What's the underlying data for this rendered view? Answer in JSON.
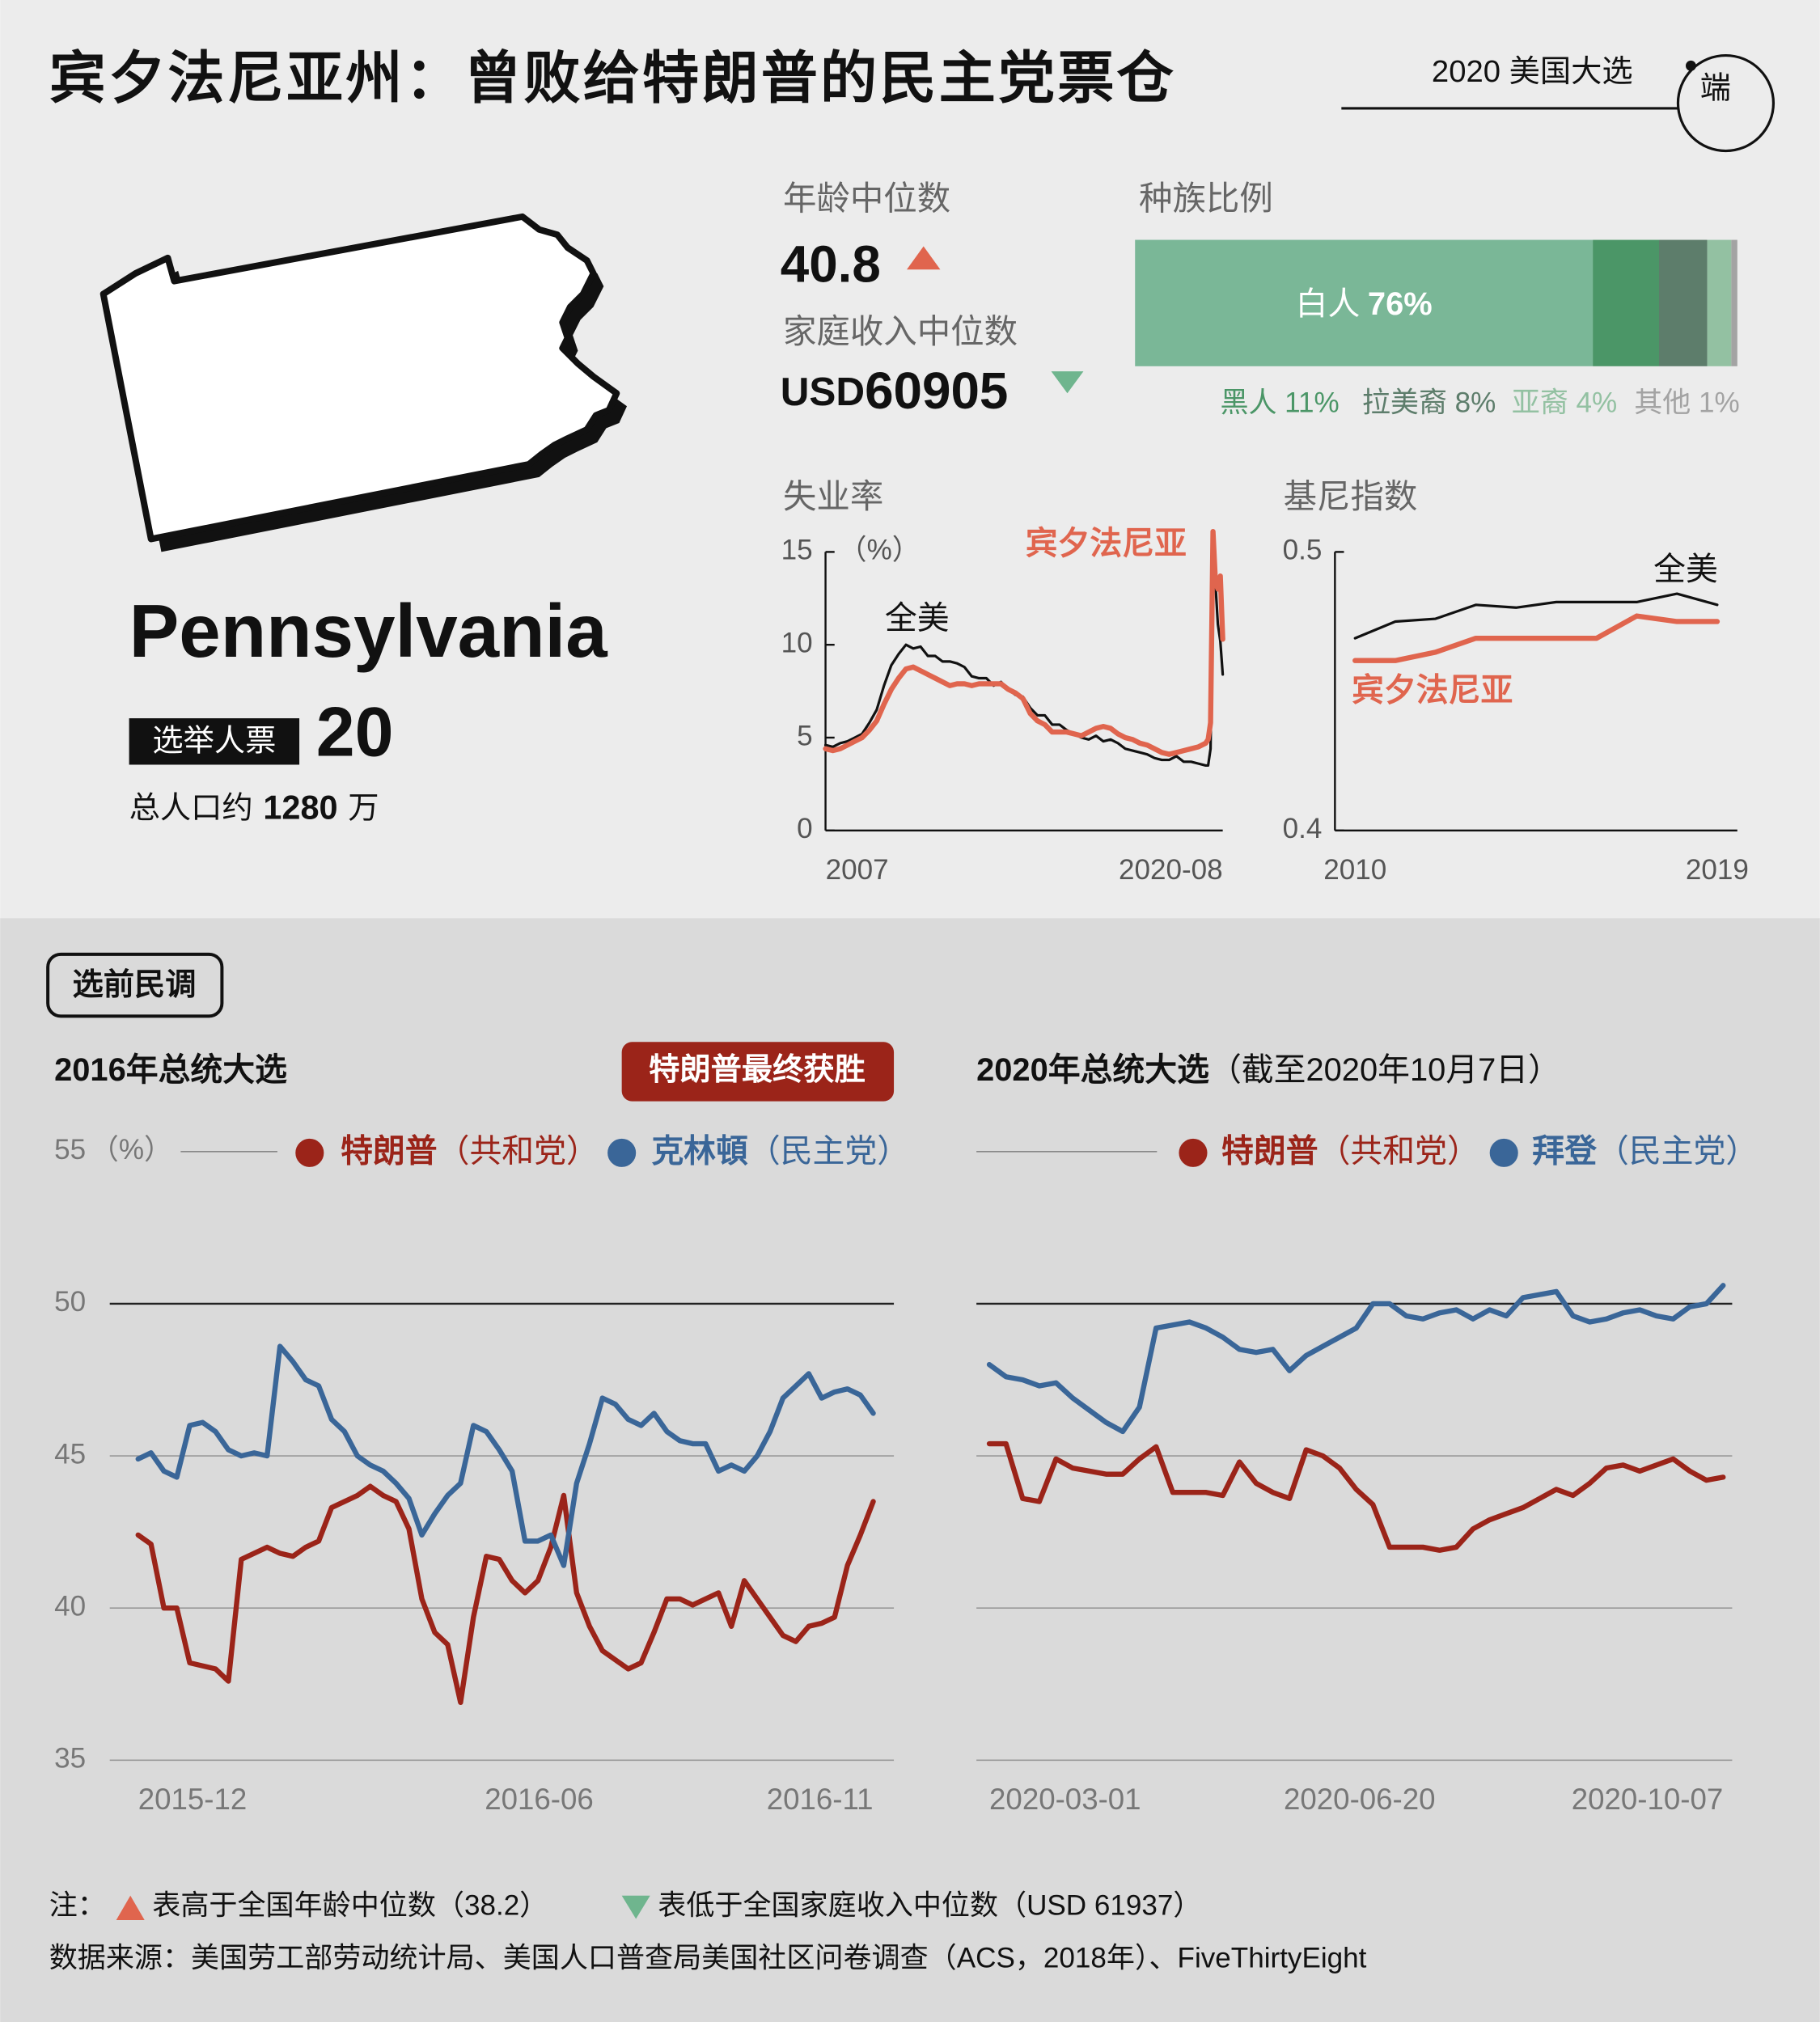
{
  "header": {
    "title": "宾夕法尼亚州：曾败给特朗普的民主党票仓",
    "series_tag": "2020 美国大选",
    "logo": "端"
  },
  "state": {
    "name": "Pennsylvania",
    "electoral_label": "选举人票",
    "electoral_votes": 20,
    "population_prefix": "总人口约",
    "population": 1280,
    "population_unit": "万"
  },
  "stats": {
    "age_label": "年龄中位数",
    "age_median": 40.8,
    "income_label": "家庭收入中位数",
    "income_currency": "USD",
    "income_median": 60905
  },
  "section": "选前民调",
  "notes": {
    "prefix": "注：",
    "age_note": "表高于全国年龄中位数（38.2）",
    "income_note": "表低于全国家庭收入中位数（USD 61937）",
    "source": "数据来源：美国劳工部劳动统计局、美国人口普查局美国社区问卷调查（ACS，2018年）、FiveThirtyEight"
  },
  "chart_data": [
    {
      "type": "stacked-bar",
      "title": "种族比例",
      "categories": [
        "白人",
        "黑人",
        "拉美裔",
        "亚裔",
        "其他"
      ],
      "values": [
        76,
        11,
        8,
        4,
        1
      ],
      "value_labels": [
        "76%",
        "11%",
        "8%",
        "4%",
        "1%"
      ],
      "colors": [
        "#7ab797",
        "#4b9667",
        "#5d7d6b",
        "#93c1a2",
        "#a3a3a3"
      ],
      "xlim": [
        0,
        100
      ]
    },
    {
      "type": "line",
      "title": "失业率",
      "unit": "（%）",
      "x": [
        "2007-01",
        "2007-04",
        "2007-07",
        "2007-10",
        "2008-01",
        "2008-04",
        "2008-07",
        "2008-10",
        "2009-01",
        "2009-04",
        "2009-07",
        "2009-10",
        "2010-01",
        "2010-04",
        "2010-07",
        "2010-10",
        "2011-01",
        "2011-04",
        "2011-07",
        "2011-10",
        "2012-01",
        "2012-04",
        "2012-07",
        "2012-10",
        "2013-01",
        "2013-04",
        "2013-07",
        "2013-10",
        "2014-01",
        "2014-04",
        "2014-07",
        "2014-10",
        "2015-01",
        "2015-04",
        "2015-07",
        "2015-10",
        "2016-01",
        "2016-04",
        "2016-07",
        "2016-10",
        "2017-01",
        "2017-04",
        "2017-07",
        "2017-10",
        "2018-01",
        "2018-04",
        "2018-07",
        "2018-10",
        "2019-01",
        "2019-04",
        "2019-07",
        "2019-10",
        "2020-01",
        "2020-02",
        "2020-03",
        "2020-04",
        "2020-05",
        "2020-06",
        "2020-07",
        "2020-08"
      ],
      "xlim": [
        "2007-01",
        "2020-08"
      ],
      "xticks": [
        {
          "value": "2007-01",
          "label": "2007"
        },
        "2020-08"
      ],
      "ylim": [
        0,
        15
      ],
      "yticks": [
        0,
        5,
        10,
        15
      ],
      "grid": false,
      "series": [
        {
          "name": "全美",
          "color": "#111111",
          "values": [
            4.6,
            4.5,
            4.7,
            4.8,
            5.0,
            5.2,
            5.8,
            6.5,
            7.8,
            8.9,
            9.5,
            10.0,
            9.8,
            9.9,
            9.4,
            9.4,
            9.1,
            9.1,
            9.0,
            8.8,
            8.3,
            8.2,
            8.2,
            7.8,
            8.0,
            7.6,
            7.3,
            7.2,
            6.6,
            6.2,
            6.2,
            5.7,
            5.7,
            5.4,
            5.2,
            5.0,
            4.9,
            5.1,
            4.8,
            4.9,
            4.7,
            4.4,
            4.3,
            4.2,
            4.1,
            3.9,
            3.8,
            3.8,
            4.0,
            3.7,
            3.7,
            3.6,
            3.5,
            3.5,
            4.4,
            14.7,
            13.3,
            11.1,
            10.2,
            8.4
          ]
        },
        {
          "name": "宾夕法尼亚",
          "color": "#e0654e",
          "values": [
            4.4,
            4.3,
            4.4,
            4.6,
            4.8,
            5.0,
            5.4,
            5.9,
            6.8,
            7.6,
            8.2,
            8.7,
            8.8,
            8.6,
            8.4,
            8.2,
            8.0,
            7.8,
            7.9,
            7.9,
            7.8,
            7.9,
            7.9,
            7.9,
            7.9,
            7.6,
            7.4,
            7.1,
            6.3,
            5.9,
            5.7,
            5.3,
            5.3,
            5.3,
            5.2,
            5.1,
            5.3,
            5.5,
            5.6,
            5.5,
            5.2,
            5.0,
            4.9,
            4.7,
            4.6,
            4.4,
            4.2,
            4.1,
            4.2,
            4.3,
            4.4,
            4.5,
            4.7,
            4.9,
            5.8,
            16.1,
            13.4,
            13.0,
            13.7,
            10.3
          ]
        }
      ]
    },
    {
      "type": "line",
      "title": "基尼指数",
      "x": [
        2010,
        2011,
        2012,
        2013,
        2014,
        2015,
        2016,
        2017,
        2018,
        2019
      ],
      "xlim": [
        2009.5,
        2019.5
      ],
      "xticks": [
        2010,
        2019
      ],
      "ylim": [
        0.4,
        0.5
      ],
      "yticks": [
        0.4,
        0.5
      ],
      "grid": false,
      "series": [
        {
          "name": "全美",
          "color": "#111111",
          "values": [
            0.469,
            0.475,
            0.476,
            0.481,
            0.48,
            0.482,
            0.482,
            0.482,
            0.485,
            0.481
          ]
        },
        {
          "name": "宾夕法尼亚",
          "color": "#e0654e",
          "values": [
            0.461,
            0.461,
            0.464,
            0.469,
            0.469,
            0.469,
            0.469,
            0.477,
            0.475,
            0.475
          ]
        }
      ]
    },
    {
      "type": "line",
      "title": "2016年总统大选",
      "annotation": "特朗普最终获胜",
      "unit": "（%）",
      "xlim": [
        "2015-12",
        "2016-11"
      ],
      "xticks": [
        "2015-12",
        "2016-06",
        "2016-11"
      ],
      "ylim": [
        35,
        55
      ],
      "yticks": [
        35,
        40,
        45,
        50,
        55
      ],
      "grid": true,
      "series": [
        {
          "name": "特朗普",
          "party": "（共和党）",
          "color": "#9b2419",
          "values": [
            42.4,
            42.1,
            40.0,
            40.0,
            38.2,
            38.1,
            38.0,
            37.6,
            41.6,
            41.8,
            42.0,
            41.8,
            41.7,
            42.0,
            42.2,
            43.3,
            43.5,
            43.7,
            44.0,
            43.7,
            43.5,
            42.6,
            40.3,
            39.2,
            38.8,
            36.9,
            39.7,
            41.7,
            41.6,
            40.9,
            40.5,
            40.9,
            42.0,
            43.7,
            40.5,
            39.4,
            38.6,
            38.3,
            38.0,
            38.2,
            39.2,
            40.3,
            40.3,
            40.1,
            40.3,
            40.5,
            39.4,
            40.9,
            40.3,
            39.7,
            39.1,
            38.9,
            39.4,
            39.5,
            39.7,
            41.4,
            42.4,
            43.5
          ]
        },
        {
          "name": "克林頓",
          "party": "（民主党）",
          "color": "#3a6698",
          "values": [
            44.9,
            45.1,
            44.5,
            44.3,
            46.0,
            46.1,
            45.8,
            45.2,
            45.0,
            45.1,
            45.0,
            48.6,
            48.1,
            47.5,
            47.3,
            46.2,
            45.8,
            45.0,
            44.7,
            44.5,
            44.1,
            43.6,
            42.4,
            43.1,
            43.7,
            44.1,
            46.0,
            45.8,
            45.2,
            44.5,
            42.2,
            42.2,
            42.4,
            41.4,
            44.1,
            45.4,
            46.9,
            46.7,
            46.2,
            46.0,
            46.4,
            45.8,
            45.5,
            45.4,
            45.4,
            44.5,
            44.7,
            44.5,
            45.0,
            45.8,
            46.9,
            47.3,
            47.7,
            46.9,
            47.1,
            47.2,
            47.0,
            46.4
          ]
        }
      ]
    },
    {
      "type": "line",
      "title": "2020年总统大选",
      "subtitle": "（截至2020年10月7日）",
      "x": [
        "2020-03-01",
        "2020-03-06",
        "2020-03-11",
        "2020-03-16",
        "2020-03-21",
        "2020-03-26",
        "2020-03-31",
        "2020-04-05",
        "2020-04-10",
        "2020-04-15",
        "2020-04-20",
        "2020-04-25",
        "2020-04-30",
        "2020-05-05",
        "2020-05-10",
        "2020-05-15",
        "2020-05-20",
        "2020-05-25",
        "2020-05-30",
        "2020-06-04",
        "2020-06-09",
        "2020-06-14",
        "2020-06-19",
        "2020-06-24",
        "2020-06-29",
        "2020-07-04",
        "2020-07-09",
        "2020-07-14",
        "2020-07-19",
        "2020-07-24",
        "2020-07-29",
        "2020-08-03",
        "2020-08-08",
        "2020-08-13",
        "2020-08-18",
        "2020-08-23",
        "2020-08-28",
        "2020-09-02",
        "2020-09-07",
        "2020-09-12",
        "2020-09-17",
        "2020-09-22",
        "2020-09-27",
        "2020-10-02",
        "2020-10-07"
      ],
      "xlim": [
        "2020-03-01",
        "2020-10-07"
      ],
      "xticks": [
        "2020-03-01",
        "2020-06-20",
        "2020-10-07"
      ],
      "ylim": [
        35,
        55
      ],
      "yticks": [
        35,
        40,
        45,
        50,
        55
      ],
      "grid": true,
      "series": [
        {
          "name": "特朗普",
          "party": "（共和党）",
          "color": "#9b2419",
          "values": [
            45.4,
            45.4,
            43.6,
            43.5,
            44.9,
            44.6,
            44.5,
            44.4,
            44.4,
            44.9,
            45.3,
            43.8,
            43.8,
            43.8,
            43.7,
            44.8,
            44.1,
            43.8,
            43.6,
            45.2,
            45.0,
            44.6,
            43.9,
            43.4,
            42.0,
            42.0,
            42.0,
            41.9,
            42.0,
            42.6,
            42.9,
            43.1,
            43.3,
            43.6,
            43.9,
            43.7,
            44.1,
            44.6,
            44.7,
            44.5,
            44.7,
            44.9,
            44.5,
            44.2,
            44.3
          ]
        },
        {
          "name": "拜登",
          "party": "（民主党）",
          "color": "#3a6698",
          "values": [
            48.0,
            47.6,
            47.5,
            47.3,
            47.4,
            46.9,
            46.5,
            46.1,
            45.8,
            46.6,
            49.2,
            49.3,
            49.4,
            49.2,
            48.9,
            48.5,
            48.4,
            48.5,
            47.8,
            48.3,
            48.6,
            48.9,
            49.2,
            50.0,
            50.0,
            49.6,
            49.5,
            49.7,
            49.8,
            49.5,
            49.8,
            49.6,
            50.2,
            50.3,
            50.4,
            49.6,
            49.4,
            49.5,
            49.7,
            49.8,
            49.6,
            49.5,
            49.9,
            50.0,
            50.6
          ]
        }
      ]
    }
  ]
}
